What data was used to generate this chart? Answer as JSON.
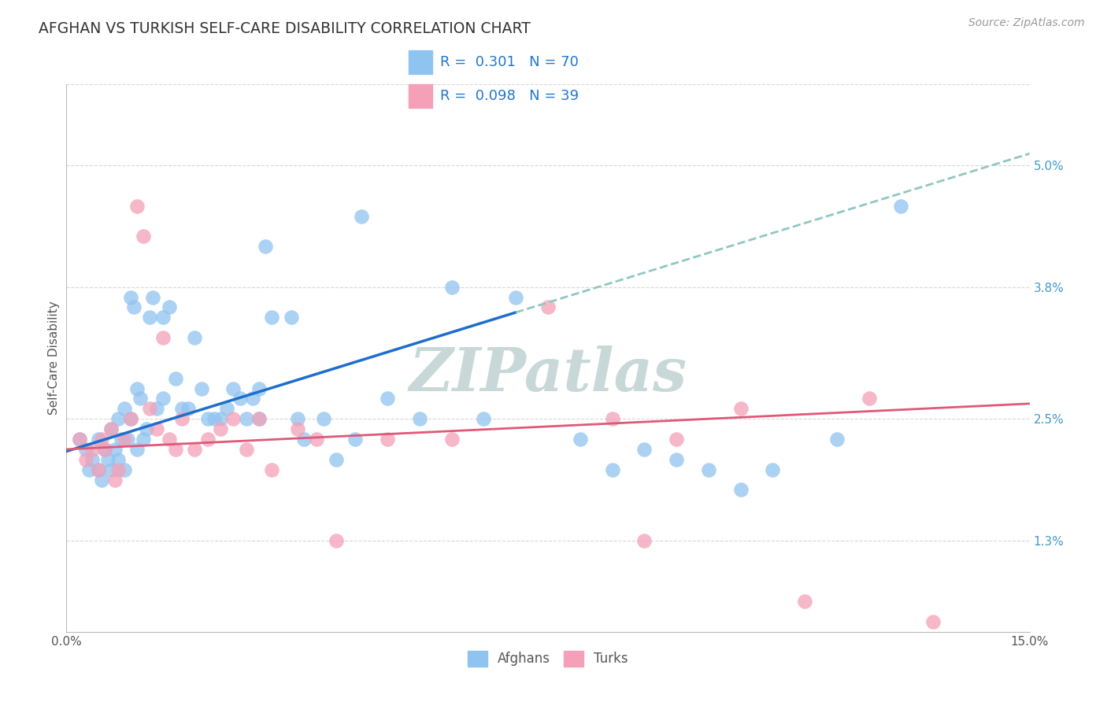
{
  "title": "AFGHAN VS TURKISH SELF-CARE DISABILITY CORRELATION CHART",
  "source": "Source: ZipAtlas.com",
  "ylabel": "Self-Care Disability",
  "xlim": [
    0.0,
    15.0
  ],
  "ylim": [
    0.4,
    5.8
  ],
  "ytick_positions": [
    1.3,
    2.5,
    3.8,
    5.0
  ],
  "xtick_positions": [
    0.0,
    15.0
  ],
  "afghan_color": "#90C4F0",
  "turk_color": "#F4A0B8",
  "trendline_afghan_color": "#1E6ECC",
  "trendline_turk_color": "#E05878",
  "trendline_ext_color": "#90C8C0",
  "watermark": "ZIPatlas",
  "watermark_color": "#C8D8D8",
  "background_color": "#FFFFFF",
  "grid_color": "#D8D8D8",
  "afghans_x": [
    0.2,
    0.3,
    0.35,
    0.4,
    0.5,
    0.5,
    0.55,
    0.6,
    0.65,
    0.7,
    0.7,
    0.75,
    0.8,
    0.8,
    0.85,
    0.9,
    0.9,
    0.95,
    1.0,
    1.0,
    1.05,
    1.1,
    1.1,
    1.15,
    1.2,
    1.25,
    1.3,
    1.35,
    1.4,
    1.5,
    1.5,
    1.6,
    1.7,
    1.8,
    1.9,
    2.0,
    2.1,
    2.2,
    2.3,
    2.4,
    2.5,
    2.6,
    2.7,
    2.8,
    2.9,
    3.0,
    3.0,
    3.1,
    3.2,
    3.5,
    3.6,
    3.7,
    4.0,
    4.2,
    4.5,
    4.6,
    5.0,
    5.5,
    6.0,
    6.5,
    7.0,
    8.0,
    8.5,
    9.0,
    9.5,
    10.0,
    10.5,
    11.0,
    12.0,
    13.0
  ],
  "afghans_y": [
    2.3,
    2.2,
    2.0,
    2.1,
    2.3,
    2.0,
    1.9,
    2.2,
    2.1,
    2.4,
    2.0,
    2.2,
    2.1,
    2.5,
    2.3,
    2.6,
    2.0,
    2.3,
    3.7,
    2.5,
    3.6,
    2.2,
    2.8,
    2.7,
    2.3,
    2.4,
    3.5,
    3.7,
    2.6,
    3.5,
    2.7,
    3.6,
    2.9,
    2.6,
    2.6,
    3.3,
    2.8,
    2.5,
    2.5,
    2.5,
    2.6,
    2.8,
    2.7,
    2.5,
    2.7,
    2.5,
    2.8,
    4.2,
    3.5,
    3.5,
    2.5,
    2.3,
    2.5,
    2.1,
    2.3,
    4.5,
    2.7,
    2.5,
    3.8,
    2.5,
    3.7,
    2.3,
    2.0,
    2.2,
    2.1,
    2.0,
    1.8,
    2.0,
    2.3,
    4.6
  ],
  "turks_x": [
    0.2,
    0.3,
    0.4,
    0.5,
    0.55,
    0.6,
    0.7,
    0.75,
    0.8,
    0.9,
    1.0,
    1.1,
    1.2,
    1.3,
    1.4,
    1.5,
    1.6,
    1.7,
    1.8,
    2.0,
    2.2,
    2.4,
    2.6,
    2.8,
    3.0,
    3.2,
    3.6,
    3.9,
    4.2,
    5.0,
    6.0,
    7.5,
    8.5,
    9.0,
    9.5,
    10.5,
    11.5,
    12.5,
    13.5
  ],
  "turks_y": [
    2.3,
    2.1,
    2.2,
    2.0,
    2.3,
    2.2,
    2.4,
    1.9,
    2.0,
    2.3,
    2.5,
    4.6,
    4.3,
    2.6,
    2.4,
    3.3,
    2.3,
    2.2,
    2.5,
    2.2,
    2.3,
    2.4,
    2.5,
    2.2,
    2.5,
    2.0,
    2.4,
    2.3,
    1.3,
    2.3,
    2.3,
    3.6,
    2.5,
    1.3,
    2.3,
    2.6,
    0.7,
    2.7,
    0.5
  ]
}
